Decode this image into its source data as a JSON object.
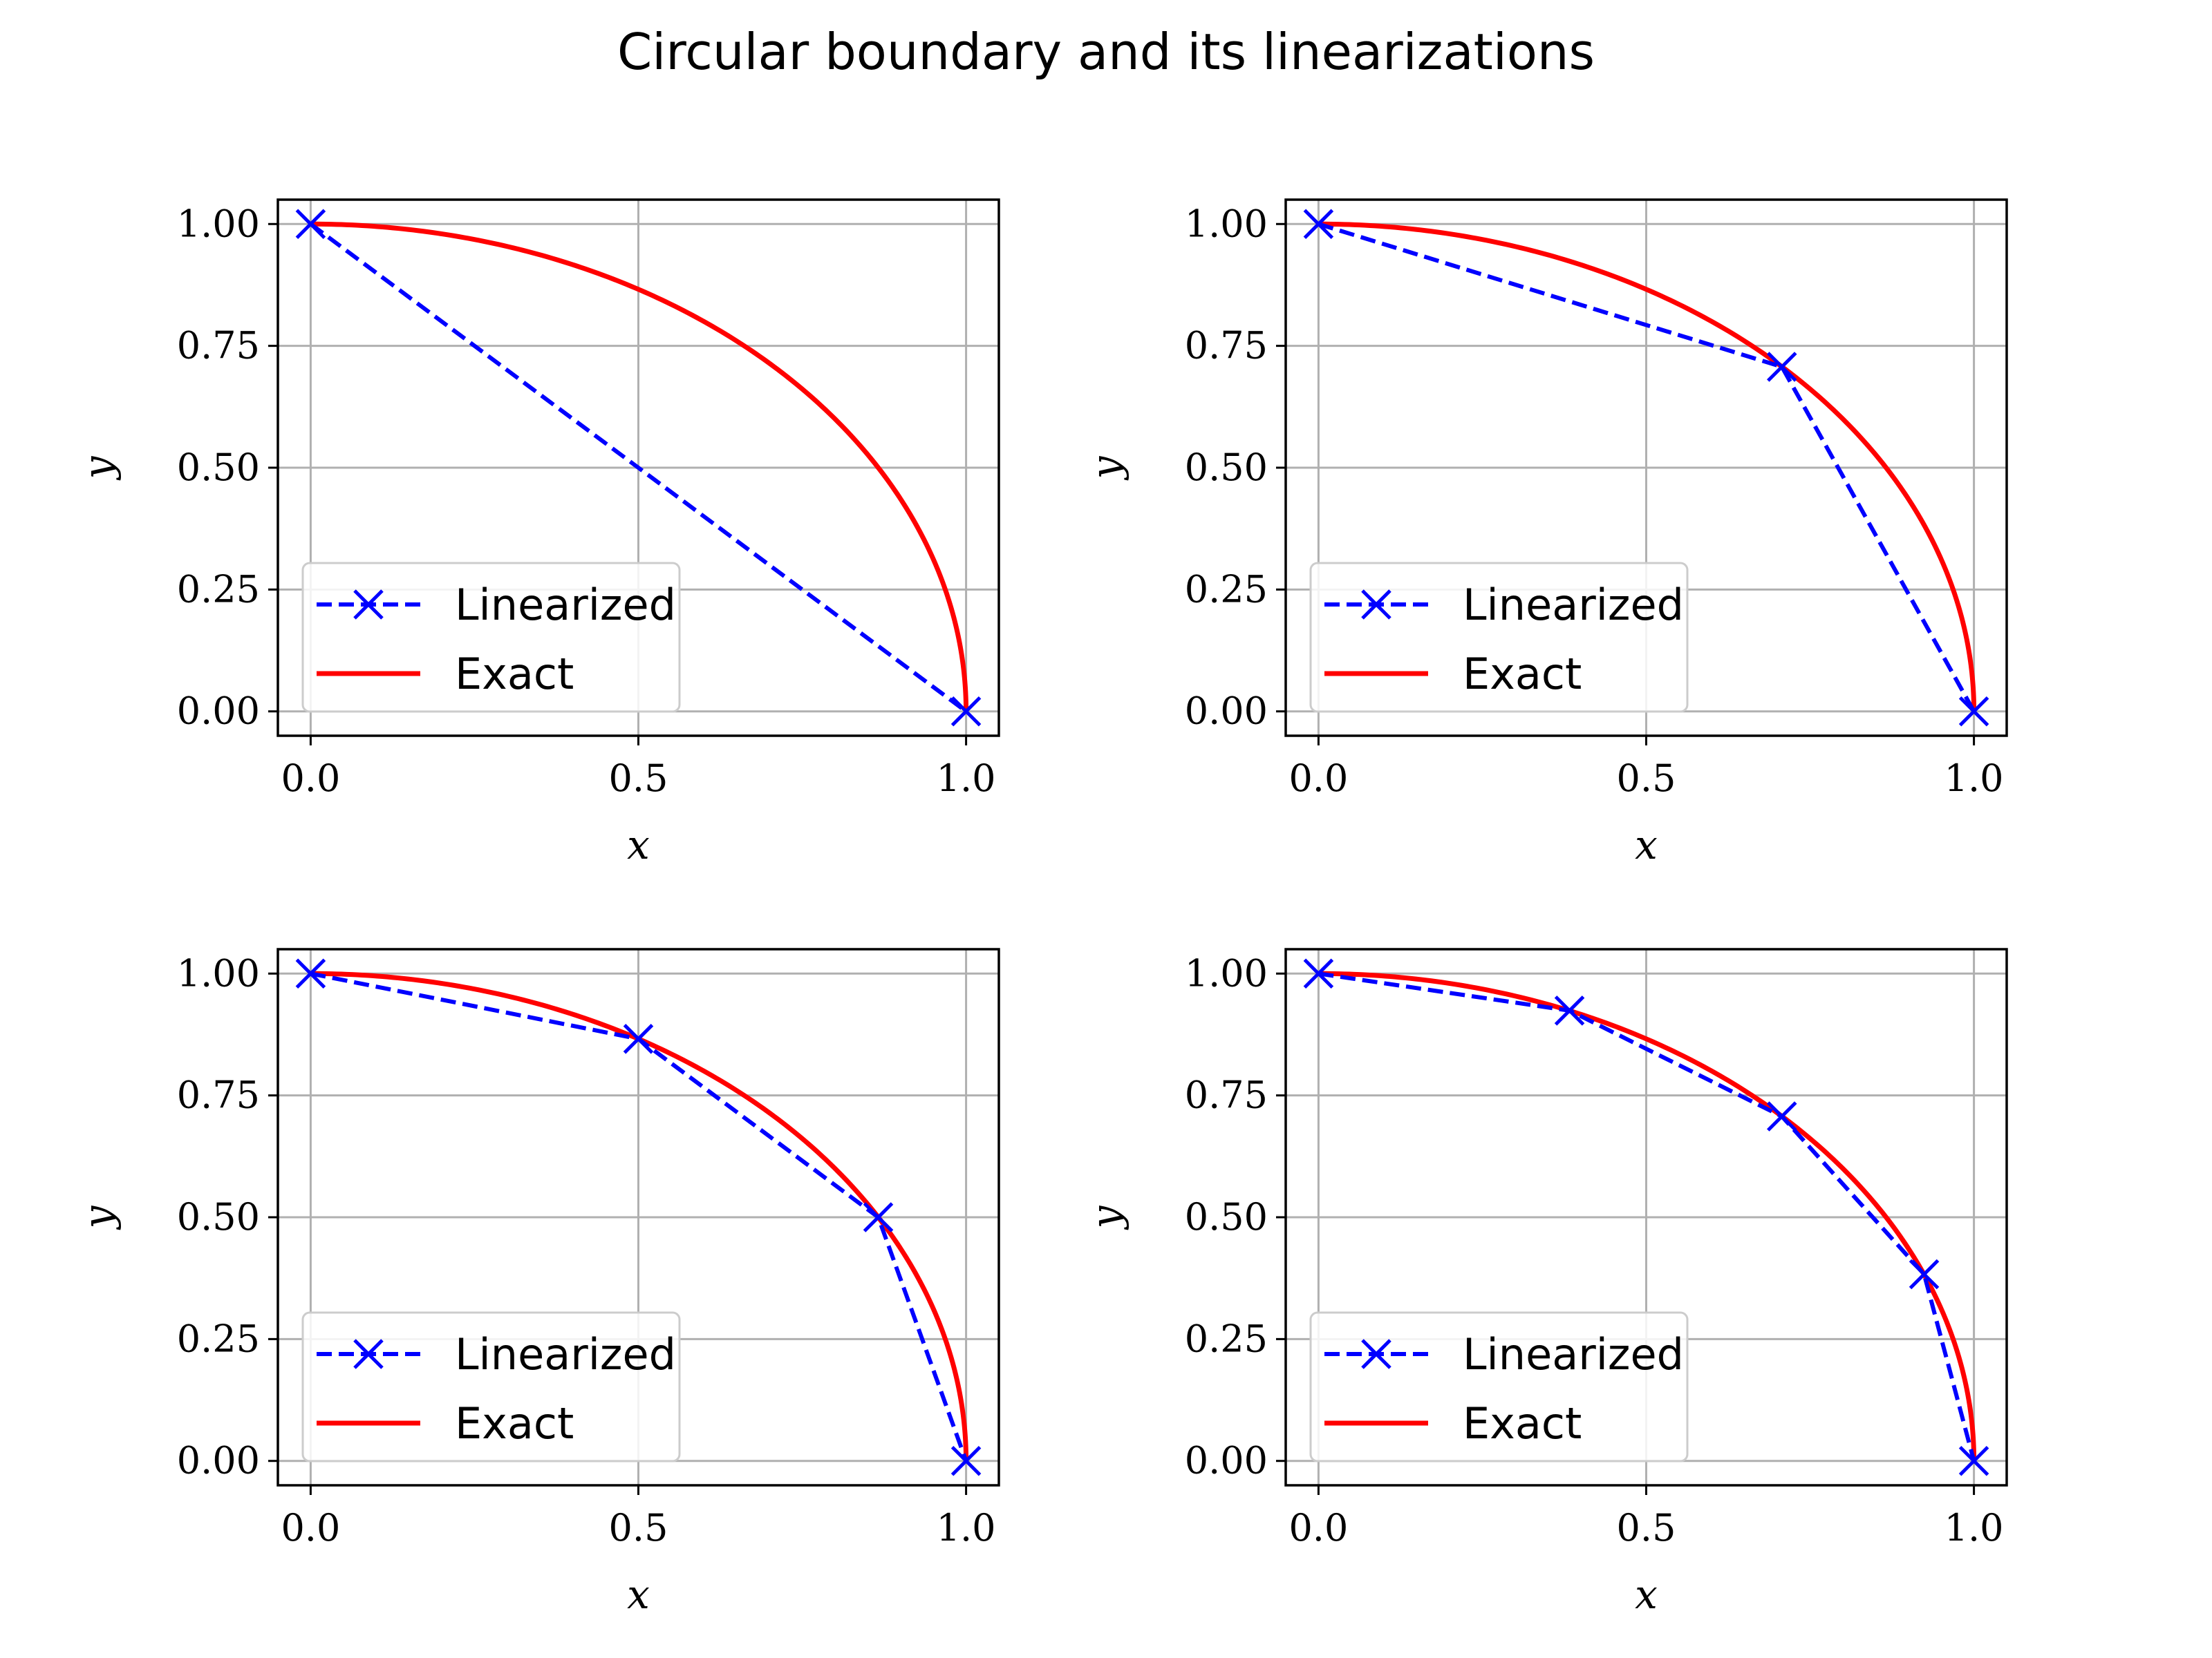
{
  "figure_title": "Circular boundary and its linearizations",
  "colors": {
    "linearized": "#0000ff",
    "exact": "#ff0000",
    "grid": "#b0b0b0"
  },
  "chart_data": [
    {
      "type": "line",
      "xlabel": "x",
      "ylabel": "y",
      "xlim": [
        -0.05,
        1.05
      ],
      "ylim": [
        -0.05,
        1.05
      ],
      "xticks": [
        "0.0",
        "0.5",
        "1.0"
      ],
      "yticks": [
        "0.00",
        "0.25",
        "0.50",
        "0.75",
        "1.00"
      ],
      "grid": true,
      "legend_placement": "lower-left",
      "series": [
        {
          "name": "Linearized",
          "style": "dashed-x",
          "x": [
            0.0,
            1.0
          ],
          "y": [
            1.0,
            0.0
          ]
        },
        {
          "name": "Exact",
          "style": "solid",
          "curve": "quarter-circle x^2+y^2=1"
        }
      ]
    },
    {
      "type": "line",
      "xlabel": "x",
      "ylabel": "y",
      "xlim": [
        -0.05,
        1.05
      ],
      "ylim": [
        -0.05,
        1.05
      ],
      "xticks": [
        "0.0",
        "0.5",
        "1.0"
      ],
      "yticks": [
        "0.00",
        "0.25",
        "0.50",
        "0.75",
        "1.00"
      ],
      "grid": true,
      "legend_placement": "lower-left",
      "series": [
        {
          "name": "Linearized",
          "style": "dashed-x",
          "x": [
            0.0,
            0.707,
            1.0
          ],
          "y": [
            1.0,
            0.707,
            0.0
          ]
        },
        {
          "name": "Exact",
          "style": "solid",
          "curve": "quarter-circle x^2+y^2=1"
        }
      ]
    },
    {
      "type": "line",
      "xlabel": "x",
      "ylabel": "y",
      "xlim": [
        -0.05,
        1.05
      ],
      "ylim": [
        -0.05,
        1.05
      ],
      "xticks": [
        "0.0",
        "0.5",
        "1.0"
      ],
      "yticks": [
        "0.00",
        "0.25",
        "0.50",
        "0.75",
        "1.00"
      ],
      "grid": true,
      "legend_placement": "lower-left",
      "series": [
        {
          "name": "Linearized",
          "style": "dashed-x",
          "x": [
            0.0,
            0.5,
            0.866,
            1.0
          ],
          "y": [
            1.0,
            0.866,
            0.5,
            0.0
          ]
        },
        {
          "name": "Exact",
          "style": "solid",
          "curve": "quarter-circle x^2+y^2=1"
        }
      ]
    },
    {
      "type": "line",
      "xlabel": "x",
      "ylabel": "y",
      "xlim": [
        -0.05,
        1.05
      ],
      "ylim": [
        -0.05,
        1.05
      ],
      "xticks": [
        "0.0",
        "0.5",
        "1.0"
      ],
      "yticks": [
        "0.00",
        "0.25",
        "0.50",
        "0.75",
        "1.00"
      ],
      "grid": true,
      "legend_placement": "lower-left",
      "series": [
        {
          "name": "Linearized",
          "style": "dashed-x",
          "x": [
            0.0,
            0.383,
            0.707,
            0.924,
            1.0
          ],
          "y": [
            1.0,
            0.924,
            0.707,
            0.383,
            0.0
          ]
        },
        {
          "name": "Exact",
          "style": "solid",
          "curve": "quarter-circle x^2+y^2=1"
        }
      ]
    }
  ]
}
